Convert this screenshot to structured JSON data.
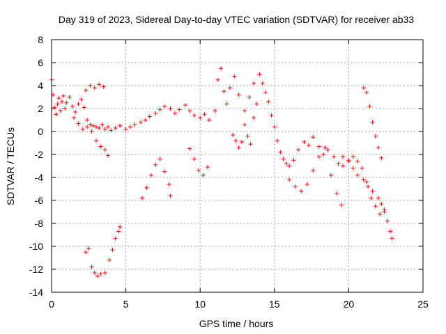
{
  "chart_data": {
    "type": "scatter",
    "title": "Day 319 of 2023, Sidereal Day-to-day VTEC variation (SDTVAR) for receiver ab33",
    "xlabel": "GPS time / hours",
    "ylabel": "SDTVAR / TECUs",
    "xlim": [
      0,
      25
    ],
    "ylim": [
      -14,
      8
    ],
    "xticks": [
      0,
      5,
      10,
      15,
      20,
      25
    ],
    "yticks": [
      -14,
      -12,
      -10,
      -8,
      -6,
      -4,
      -2,
      0,
      2,
      4,
      6,
      8
    ],
    "grid": true,
    "marker": "+",
    "color": "#ff0000",
    "series": [
      {
        "name": "main-track",
        "x": [
          0.0,
          0.1,
          0.2,
          0.3,
          0.4,
          0.5,
          0.6,
          0.7,
          0.8,
          0.9,
          1.0,
          1.2,
          1.4,
          1.6,
          1.8,
          2.0,
          2.2,
          2.4,
          2.6,
          2.8,
          3.0,
          3.2,
          3.4,
          3.6,
          3.8,
          4.0,
          4.3,
          4.6,
          5.0,
          5.3,
          5.6,
          6.0,
          6.3,
          6.6,
          7.0,
          7.3,
          7.6,
          8.0,
          8.3,
          8.6,
          9.0,
          9.3,
          9.6,
          10.0,
          10.3,
          10.6,
          11.0,
          11.2,
          11.4,
          11.6,
          11.8,
          12.0,
          12.3,
          12.6,
          13.0,
          13.3,
          13.6,
          14.0,
          14.2,
          14.4,
          14.6,
          14.8,
          15.0,
          15.2,
          15.4,
          15.6,
          15.8,
          16.0,
          16.3,
          16.6,
          17.0,
          17.3,
          17.6,
          18.0,
          18.3,
          18.6,
          19.0,
          19.3,
          19.6,
          20.0,
          20.3,
          20.6,
          21.0,
          21.3,
          21.6,
          22.0,
          22.2,
          22.4,
          22.6,
          22.8,
          22.9
        ],
        "values": [
          4.5,
          3.2,
          2.1,
          1.5,
          2.4,
          2.9,
          1.8,
          2.6,
          3.1,
          2.0,
          2.5,
          3.0,
          2.2,
          1.7,
          2.4,
          2.8,
          2.1,
          1.0,
          0.6,
          0.5,
          0.4,
          0.3,
          0.6,
          0.2,
          0.4,
          0.1,
          0.3,
          0.5,
          0.2,
          0.4,
          0.6,
          0.8,
          1.0,
          1.3,
          1.6,
          1.9,
          2.2,
          2.0,
          1.6,
          1.9,
          2.3,
          1.8,
          1.4,
          1.2,
          1.5,
          1.0,
          1.8,
          4.5,
          5.5,
          3.5,
          2.4,
          3.8,
          4.8,
          3.2,
          1.8,
          3.0,
          4.2,
          5.0,
          4.2,
          3.4,
          2.6,
          1.4,
          0.4,
          -0.8,
          -1.8,
          -2.4,
          -2.8,
          -3.0,
          -2.5,
          -1.6,
          -0.9,
          -1.2,
          -0.5,
          -1.3,
          -2.0,
          -1.6,
          -2.2,
          -2.8,
          -2.2,
          -2.6,
          -3.2,
          -3.8,
          -4.2,
          -4.8,
          -5.2,
          -5.8,
          -6.3,
          -7.0,
          -7.8,
          -8.7,
          -9.3
        ]
      },
      {
        "name": "branch-a",
        "x": [
          1.5,
          1.8,
          2.1,
          2.4,
          2.7,
          3.0,
          3.3,
          3.6,
          3.8
        ],
        "values": [
          1.2,
          0.7,
          0.2,
          0.4,
          0.0,
          -0.8,
          -1.3,
          -1.6,
          -2.1
        ]
      },
      {
        "name": "branch-b",
        "x": [
          2.3,
          2.6,
          2.9,
          3.2,
          3.5
        ],
        "values": [
          3.6,
          4.0,
          3.8,
          4.1,
          3.9
        ]
      },
      {
        "name": "branch-c",
        "x": [
          2.3,
          2.5,
          2.7,
          2.9,
          3.1,
          3.3,
          3.6,
          3.9,
          4.1,
          4.3,
          4.5,
          4.6
        ],
        "values": [
          -10.5,
          -10.2,
          -11.8,
          -12.3,
          -12.6,
          -12.4,
          -12.3,
          -11.2,
          -10.3,
          -9.3,
          -8.7,
          -8.3
        ]
      },
      {
        "name": "branch-d",
        "x": [
          6.1,
          6.4,
          6.7,
          7.0,
          7.3,
          7.6,
          7.9,
          8.0
        ],
        "values": [
          -5.8,
          -4.9,
          -3.8,
          -2.9,
          -2.4,
          -3.5,
          -4.6,
          -5.6
        ]
      },
      {
        "name": "branch-e",
        "x": [
          9.3,
          9.6,
          9.9,
          10.2,
          10.5
        ],
        "values": [
          -1.5,
          -2.4,
          -3.4,
          -3.8,
          -3.1
        ]
      },
      {
        "name": "branch-f",
        "x": [
          12.2,
          12.4,
          12.6,
          12.8,
          13.0,
          13.2,
          13.4,
          13.6,
          13.8
        ],
        "values": [
          -0.3,
          -0.8,
          -1.4,
          -0.9,
          0.6,
          -0.4,
          -1.1,
          1.2,
          2.4
        ]
      },
      {
        "name": "branch-g",
        "x": [
          16.0,
          16.4,
          16.8,
          17.2,
          17.6,
          18.0,
          18.4,
          18.8,
          19.2,
          19.5
        ],
        "values": [
          -4.2,
          -4.8,
          -5.2,
          -4.6,
          -3.4,
          -2.2,
          -1.4,
          -3.8,
          -5.4,
          -6.4
        ]
      },
      {
        "name": "branch-h",
        "x": [
          21.0,
          21.2,
          21.4,
          21.6,
          21.8,
          22.0,
          22.2
        ],
        "values": [
          3.8,
          3.4,
          2.2,
          0.8,
          -0.4,
          -1.4,
          -2.3
        ]
      },
      {
        "name": "branch-i",
        "x": [
          19.6,
          20.0,
          20.3,
          20.6,
          20.9,
          21.2,
          21.5,
          21.8,
          22.1,
          22.4
        ],
        "values": [
          -3.0,
          -2.5,
          -2.2,
          -2.6,
          -3.2,
          -4.4,
          -5.8,
          -6.5,
          -7.2,
          -6.8
        ]
      }
    ]
  }
}
